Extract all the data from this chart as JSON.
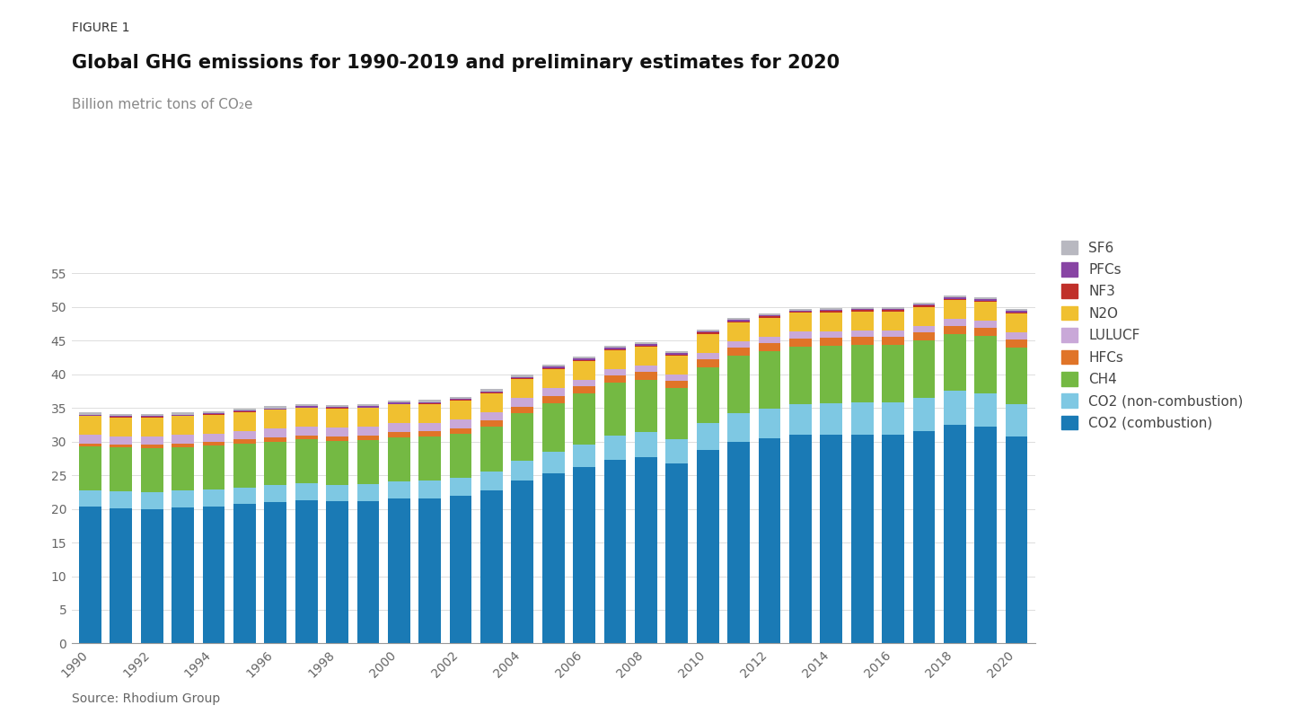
{
  "years": [
    1990,
    1991,
    1992,
    1993,
    1994,
    1995,
    1996,
    1997,
    1998,
    1999,
    2000,
    2001,
    2002,
    2003,
    2004,
    2005,
    2006,
    2007,
    2008,
    2009,
    2010,
    2011,
    2012,
    2013,
    2014,
    2015,
    2016,
    2017,
    2018,
    2019,
    2020
  ],
  "co2_combustion": [
    20.3,
    20.1,
    20.0,
    20.2,
    20.4,
    20.7,
    21.0,
    21.3,
    21.1,
    21.2,
    21.6,
    21.6,
    21.9,
    22.7,
    24.2,
    25.3,
    26.2,
    27.3,
    27.7,
    26.7,
    28.8,
    30.0,
    30.5,
    31.0,
    31.0,
    31.0,
    31.0,
    31.5,
    32.5,
    32.2,
    30.7
  ],
  "co2_noncombustion": [
    2.5,
    2.5,
    2.5,
    2.5,
    2.5,
    2.5,
    2.5,
    2.5,
    2.5,
    2.5,
    2.5,
    2.6,
    2.7,
    2.8,
    3.0,
    3.2,
    3.4,
    3.6,
    3.7,
    3.6,
    4.0,
    4.2,
    4.4,
    4.6,
    4.7,
    4.8,
    4.8,
    5.0,
    5.0,
    5.0,
    4.8
  ],
  "ch4": [
    6.5,
    6.5,
    6.5,
    6.5,
    6.5,
    6.5,
    6.5,
    6.5,
    6.5,
    6.5,
    6.5,
    6.5,
    6.5,
    6.7,
    7.0,
    7.2,
    7.5,
    7.8,
    7.8,
    7.6,
    8.2,
    8.5,
    8.5,
    8.5,
    8.5,
    8.5,
    8.5,
    8.5,
    8.5,
    8.5,
    8.5
  ],
  "hfcs": [
    0.4,
    0.4,
    0.5,
    0.5,
    0.5,
    0.6,
    0.6,
    0.6,
    0.7,
    0.7,
    0.8,
    0.8,
    0.9,
    0.9,
    1.0,
    1.0,
    1.1,
    1.1,
    1.1,
    1.1,
    1.2,
    1.2,
    1.2,
    1.2,
    1.2,
    1.2,
    1.2,
    1.2,
    1.2,
    1.2,
    1.2
  ],
  "lulucf": [
    1.3,
    1.3,
    1.3,
    1.3,
    1.3,
    1.3,
    1.3,
    1.3,
    1.3,
    1.3,
    1.3,
    1.3,
    1.3,
    1.3,
    1.3,
    1.3,
    1.0,
    1.0,
    1.0,
    1.0,
    1.0,
    1.0,
    1.0,
    1.0,
    1.0,
    1.0,
    1.0,
    1.0,
    1.0,
    1.0,
    1.0
  ],
  "n2o": [
    2.8,
    2.8,
    2.8,
    2.8,
    2.8,
    2.8,
    2.8,
    2.8,
    2.8,
    2.8,
    2.8,
    2.8,
    2.8,
    2.8,
    2.8,
    2.8,
    2.8,
    2.8,
    2.8,
    2.8,
    2.8,
    2.8,
    2.8,
    2.8,
    2.8,
    2.8,
    2.8,
    2.8,
    2.8,
    2.8,
    2.8
  ],
  "nf3": [
    0.02,
    0.02,
    0.03,
    0.03,
    0.03,
    0.04,
    0.04,
    0.05,
    0.06,
    0.07,
    0.08,
    0.09,
    0.1,
    0.1,
    0.12,
    0.12,
    0.13,
    0.14,
    0.15,
    0.15,
    0.16,
    0.17,
    0.18,
    0.18,
    0.2,
    0.2,
    0.2,
    0.2,
    0.22,
    0.22,
    0.22
  ],
  "pfcs": [
    0.18,
    0.18,
    0.18,
    0.18,
    0.18,
    0.18,
    0.18,
    0.18,
    0.18,
    0.18,
    0.18,
    0.18,
    0.18,
    0.18,
    0.18,
    0.18,
    0.18,
    0.18,
    0.18,
    0.18,
    0.18,
    0.18,
    0.18,
    0.18,
    0.18,
    0.18,
    0.18,
    0.18,
    0.18,
    0.18,
    0.18
  ],
  "sf6": [
    0.3,
    0.3,
    0.3,
    0.3,
    0.3,
    0.3,
    0.3,
    0.3,
    0.3,
    0.3,
    0.3,
    0.3,
    0.3,
    0.3,
    0.3,
    0.3,
    0.3,
    0.3,
    0.3,
    0.3,
    0.3,
    0.3,
    0.3,
    0.3,
    0.3,
    0.3,
    0.3,
    0.3,
    0.3,
    0.3,
    0.3
  ],
  "colors": {
    "co2_combustion": "#1a7ab5",
    "co2_noncombustion": "#7ec8e3",
    "ch4": "#74b943",
    "hfcs": "#e07428",
    "lulucf": "#c9a8d8",
    "n2o": "#f0c030",
    "nf3": "#c0302a",
    "pfcs": "#8844a4",
    "sf6": "#b8b8c0"
  },
  "title_figure": "FIGURE 1",
  "title_main": "Global GHG emissions for 1990-2019 and preliminary estimates for 2020",
  "subtitle": "Billion metric tons of CO₂e",
  "source": "Source: Rhodium Group",
  "ylim": [
    0,
    58
  ],
  "yticks": [
    0,
    5,
    10,
    15,
    20,
    25,
    30,
    35,
    40,
    45,
    50,
    55
  ],
  "background_color": "#ffffff",
  "fig_width": 14.5,
  "fig_height": 8.05
}
